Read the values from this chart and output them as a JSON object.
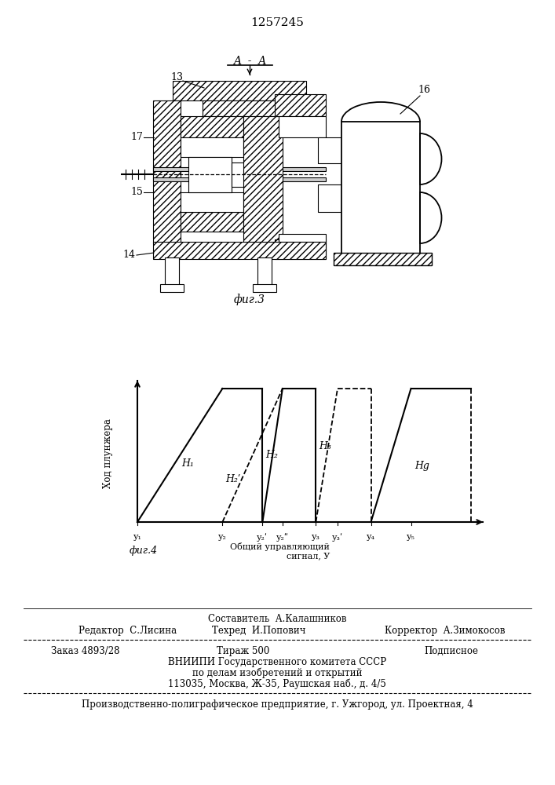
{
  "patent_number": "1257245",
  "fig3_label": "фиг.3",
  "fig4_label": "фиг.4",
  "fig3_section_label": "A - A",
  "fig4_ylabel": "Ход плунжера",
  "fig4_xlabel_part1": "Общий управляющий",
  "fig4_xlabel_part2": "сигнал, У",
  "footer_above": "Составитель  А.Калашников",
  "footer_left": "Редактор  С.Лисина",
  "footer_center": "Техред  И.Попович",
  "footer_right": "Корректор  А.Зимокосов",
  "footer_zakas": "Заказ 4893/28",
  "footer_tirazh": "Тираж 500",
  "footer_podp": "Подписное",
  "footer_vniip1": "ВНИИПИ Государственного комитета СССР",
  "footer_vniip2": "по делам изобретений и открытий",
  "footer_vniip3": "113035, Москва, Ж-35, Раушская наб., д. 4/5",
  "footer_prod": "Производственно-полиграфическое предприятие, г. Ужгород, ул. Проектная, 4",
  "bg_color": "#ffffff",
  "line_color": "#000000"
}
